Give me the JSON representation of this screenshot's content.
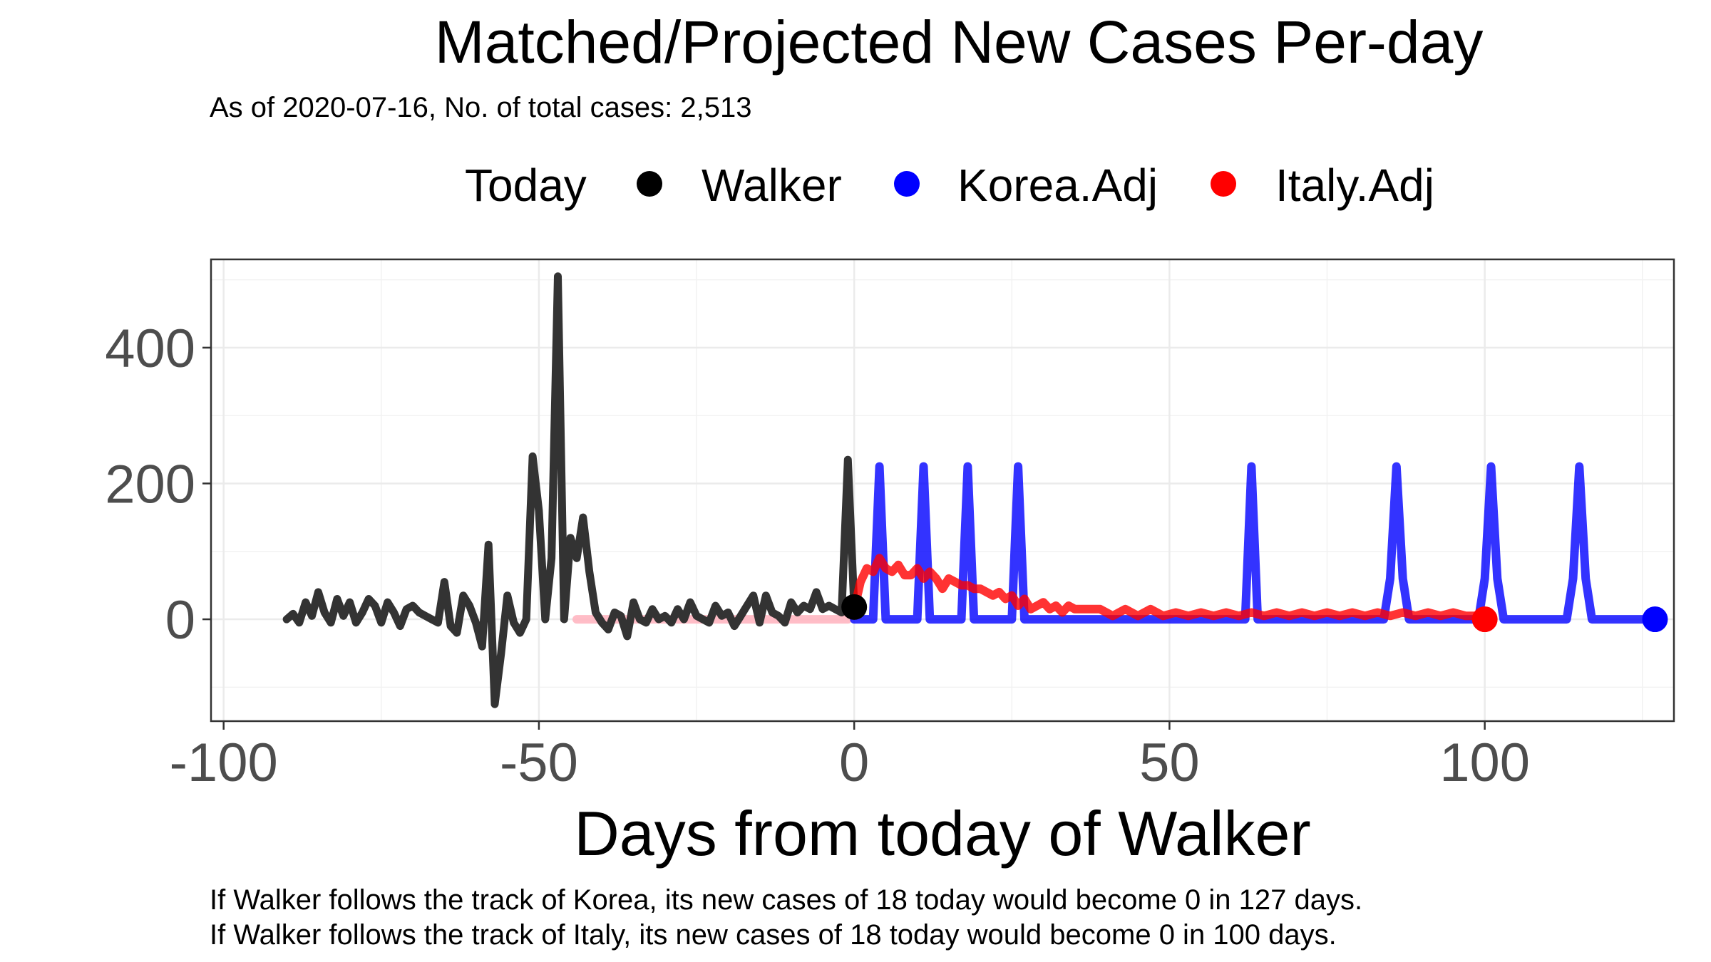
{
  "chart_data": {
    "type": "line",
    "title": "Matched/Projected New Cases Per-day",
    "subtitle": "As of 2020-07-16, No. of total cases: 2,513",
    "xlabel": "Days from today of Walker",
    "ylabel": "",
    "xlim": [
      -102,
      130
    ],
    "ylim": [
      -150,
      530
    ],
    "x_ticks": [
      -100,
      -50,
      0,
      50,
      100
    ],
    "y_ticks": [
      0,
      200,
      400
    ],
    "x_tick_labels": [
      "-100",
      "-50",
      "0",
      "50",
      "100"
    ],
    "y_tick_labels": [
      "0",
      "200",
      "400"
    ],
    "grid": true,
    "legend": {
      "placement": "top",
      "title": "Today",
      "entries": [
        {
          "label": "Walker",
          "color": "#000000"
        },
        {
          "label": "Korea.Adj",
          "color": "#0000ff"
        },
        {
          "label": "Italy.Adj",
          "color": "#ff0000"
        }
      ]
    },
    "captions": [
      "If Walker follows the track of Korea, its new cases of 18 today would become 0 in 127 days.",
      "If Walker follows the track of Italy, its new cases of 18 today would become 0 in 100 days."
    ],
    "series": [
      {
        "name": "Walker",
        "color": "#333333",
        "x": [
          -90,
          -89,
          -88,
          -87,
          -86,
          -85,
          -84,
          -83,
          -82,
          -81,
          -80,
          -79,
          -78,
          -77,
          -76,
          -75,
          -74,
          -73,
          -72,
          -71,
          -70,
          -69,
          -68,
          -67,
          -66,
          -65,
          -64,
          -63,
          -62,
          -61,
          -60,
          -59,
          -58,
          -57,
          -56,
          -55,
          -54,
          -53,
          -52,
          -51,
          -50,
          -49,
          -48,
          -47,
          -46,
          -45,
          -44,
          -43,
          -42,
          -41,
          -40,
          -39,
          -38,
          -37,
          -36,
          -35,
          -34,
          -33,
          -32,
          -31,
          -30,
          -29,
          -28,
          -27,
          -26,
          -25,
          -24,
          -23,
          -22,
          -21,
          -20,
          -19,
          -18,
          -17,
          -16,
          -15,
          -14,
          -13,
          -12,
          -11,
          -10,
          -9,
          -8,
          -7,
          -6,
          -5,
          -4,
          -3,
          -2,
          -1,
          0
        ],
        "y": [
          0,
          8,
          -5,
          25,
          5,
          40,
          10,
          -5,
          30,
          5,
          25,
          -5,
          10,
          30,
          20,
          -5,
          25,
          10,
          -10,
          15,
          20,
          10,
          5,
          0,
          -5,
          55,
          -10,
          -20,
          35,
          20,
          -5,
          -40,
          110,
          -125,
          -50,
          35,
          -5,
          -20,
          0,
          240,
          160,
          0,
          90,
          505,
          0,
          120,
          90,
          150,
          70,
          10,
          -5,
          -15,
          10,
          5,
          -25,
          25,
          0,
          -5,
          15,
          0,
          5,
          -5,
          15,
          0,
          25,
          5,
          0,
          -5,
          20,
          5,
          10,
          -10,
          5,
          20,
          35,
          -5,
          35,
          10,
          5,
          -5,
          25,
          10,
          20,
          15,
          40,
          15,
          20,
          15,
          10,
          235,
          18
        ],
        "draw_order": 2
      },
      {
        "name": "Walker (matched)",
        "color": "#ffb6c1",
        "x": [
          -44,
          -40,
          -35,
          -30,
          -25,
          -20,
          -15,
          -10,
          -5,
          -1
        ],
        "y": [
          0,
          0,
          0,
          0,
          0,
          0,
          0,
          0,
          0,
          0
        ],
        "draw_order": 1
      },
      {
        "name": "Korea.Adj",
        "color": "#0000ff",
        "x": [
          0,
          1,
          2,
          3,
          4,
          5,
          6,
          7,
          8,
          9,
          10,
          11,
          12,
          13,
          14,
          15,
          16,
          17,
          18,
          19,
          20,
          21,
          22,
          23,
          24,
          25,
          26,
          27,
          28,
          29,
          30,
          40,
          50,
          55,
          60,
          61,
          62,
          63,
          64,
          65,
          66,
          70,
          80,
          84,
          85,
          86,
          87,
          88,
          89,
          90,
          95,
          99,
          100,
          101,
          102,
          103,
          104,
          105,
          110,
          113,
          114,
          115,
          116,
          117,
          118,
          120,
          127
        ],
        "y": [
          0,
          0,
          0,
          0,
          225,
          0,
          0,
          0,
          0,
          0,
          0,
          225,
          0,
          0,
          0,
          0,
          0,
          0,
          225,
          0,
          0,
          0,
          0,
          0,
          0,
          0,
          225,
          0,
          0,
          0,
          0,
          0,
          0,
          0,
          0,
          0,
          0,
          225,
          0,
          0,
          0,
          0,
          0,
          0,
          60,
          225,
          60,
          0,
          0,
          0,
          0,
          0,
          60,
          225,
          60,
          0,
          0,
          0,
          0,
          0,
          60,
          225,
          60,
          0,
          0,
          0,
          0
        ],
        "draw_order": 3
      },
      {
        "name": "Italy.Adj",
        "color": "#ff0000",
        "x": [
          0,
          1,
          2,
          3,
          4,
          5,
          6,
          7,
          8,
          9,
          10,
          11,
          12,
          13,
          14,
          15,
          16,
          17,
          18,
          19,
          20,
          21,
          22,
          23,
          24,
          25,
          26,
          27,
          28,
          29,
          30,
          31,
          32,
          33,
          34,
          35,
          37,
          39,
          41,
          43,
          45,
          47,
          49,
          51,
          53,
          55,
          57,
          59,
          61,
          63,
          65,
          67,
          69,
          71,
          73,
          75,
          77,
          79,
          81,
          83,
          85,
          87,
          89,
          91,
          93,
          95,
          97,
          99,
          100
        ],
        "y": [
          15,
          55,
          75,
          70,
          90,
          75,
          70,
          80,
          65,
          65,
          75,
          60,
          70,
          60,
          45,
          60,
          55,
          50,
          50,
          45,
          45,
          40,
          35,
          40,
          30,
          35,
          20,
          30,
          15,
          20,
          25,
          15,
          20,
          10,
          20,
          15,
          15,
          15,
          5,
          15,
          5,
          15,
          5,
          10,
          5,
          10,
          5,
          10,
          5,
          10,
          5,
          10,
          5,
          10,
          5,
          10,
          5,
          10,
          5,
          10,
          5,
          10,
          5,
          10,
          5,
          10,
          5,
          5,
          0
        ],
        "draw_order": 4
      }
    ],
    "points": [
      {
        "series": "Walker",
        "x": 0,
        "y": 18,
        "color": "#000000"
      },
      {
        "series": "Korea.Adj",
        "x": 127,
        "y": 0,
        "color": "#0000ff"
      },
      {
        "series": "Italy.Adj",
        "x": 100,
        "y": 0,
        "color": "#ff0000"
      }
    ]
  }
}
